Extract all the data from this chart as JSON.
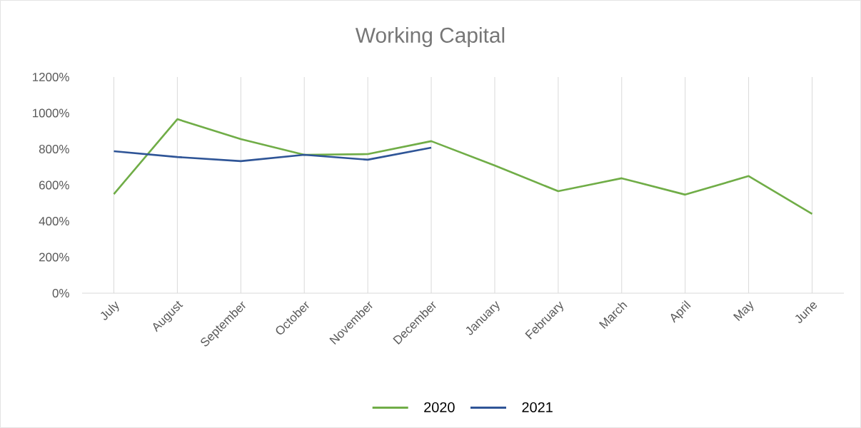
{
  "chart_data": {
    "type": "line",
    "title": "Working Capital",
    "categories": [
      "July",
      "August",
      "September",
      "October",
      "November",
      "December",
      "January",
      "February",
      "March",
      "April",
      "May",
      "June"
    ],
    "series": [
      {
        "name": "2020",
        "color": "#70ad47",
        "values": [
          550,
          966,
          855,
          768,
          772,
          844,
          709,
          566,
          638,
          547,
          650,
          440
        ]
      },
      {
        "name": "2021",
        "color": "#2f5597",
        "values": [
          788,
          756,
          733,
          768,
          741,
          808,
          null,
          null,
          null,
          null,
          null,
          null
        ]
      }
    ],
    "ylim": [
      0,
      1200
    ],
    "yticks": [
      {
        "value": 0,
        "label": "0%"
      },
      {
        "value": 200,
        "label": "200%"
      },
      {
        "value": 400,
        "label": "400%"
      },
      {
        "value": 600,
        "label": "600%"
      },
      {
        "value": 800,
        "label": "800%"
      },
      {
        "value": 1000,
        "label": "1000%"
      },
      {
        "value": 1200,
        "label": "1200%"
      }
    ],
    "grid": "x",
    "legend": "bottom",
    "marker": "none",
    "line_style": "solid"
  }
}
